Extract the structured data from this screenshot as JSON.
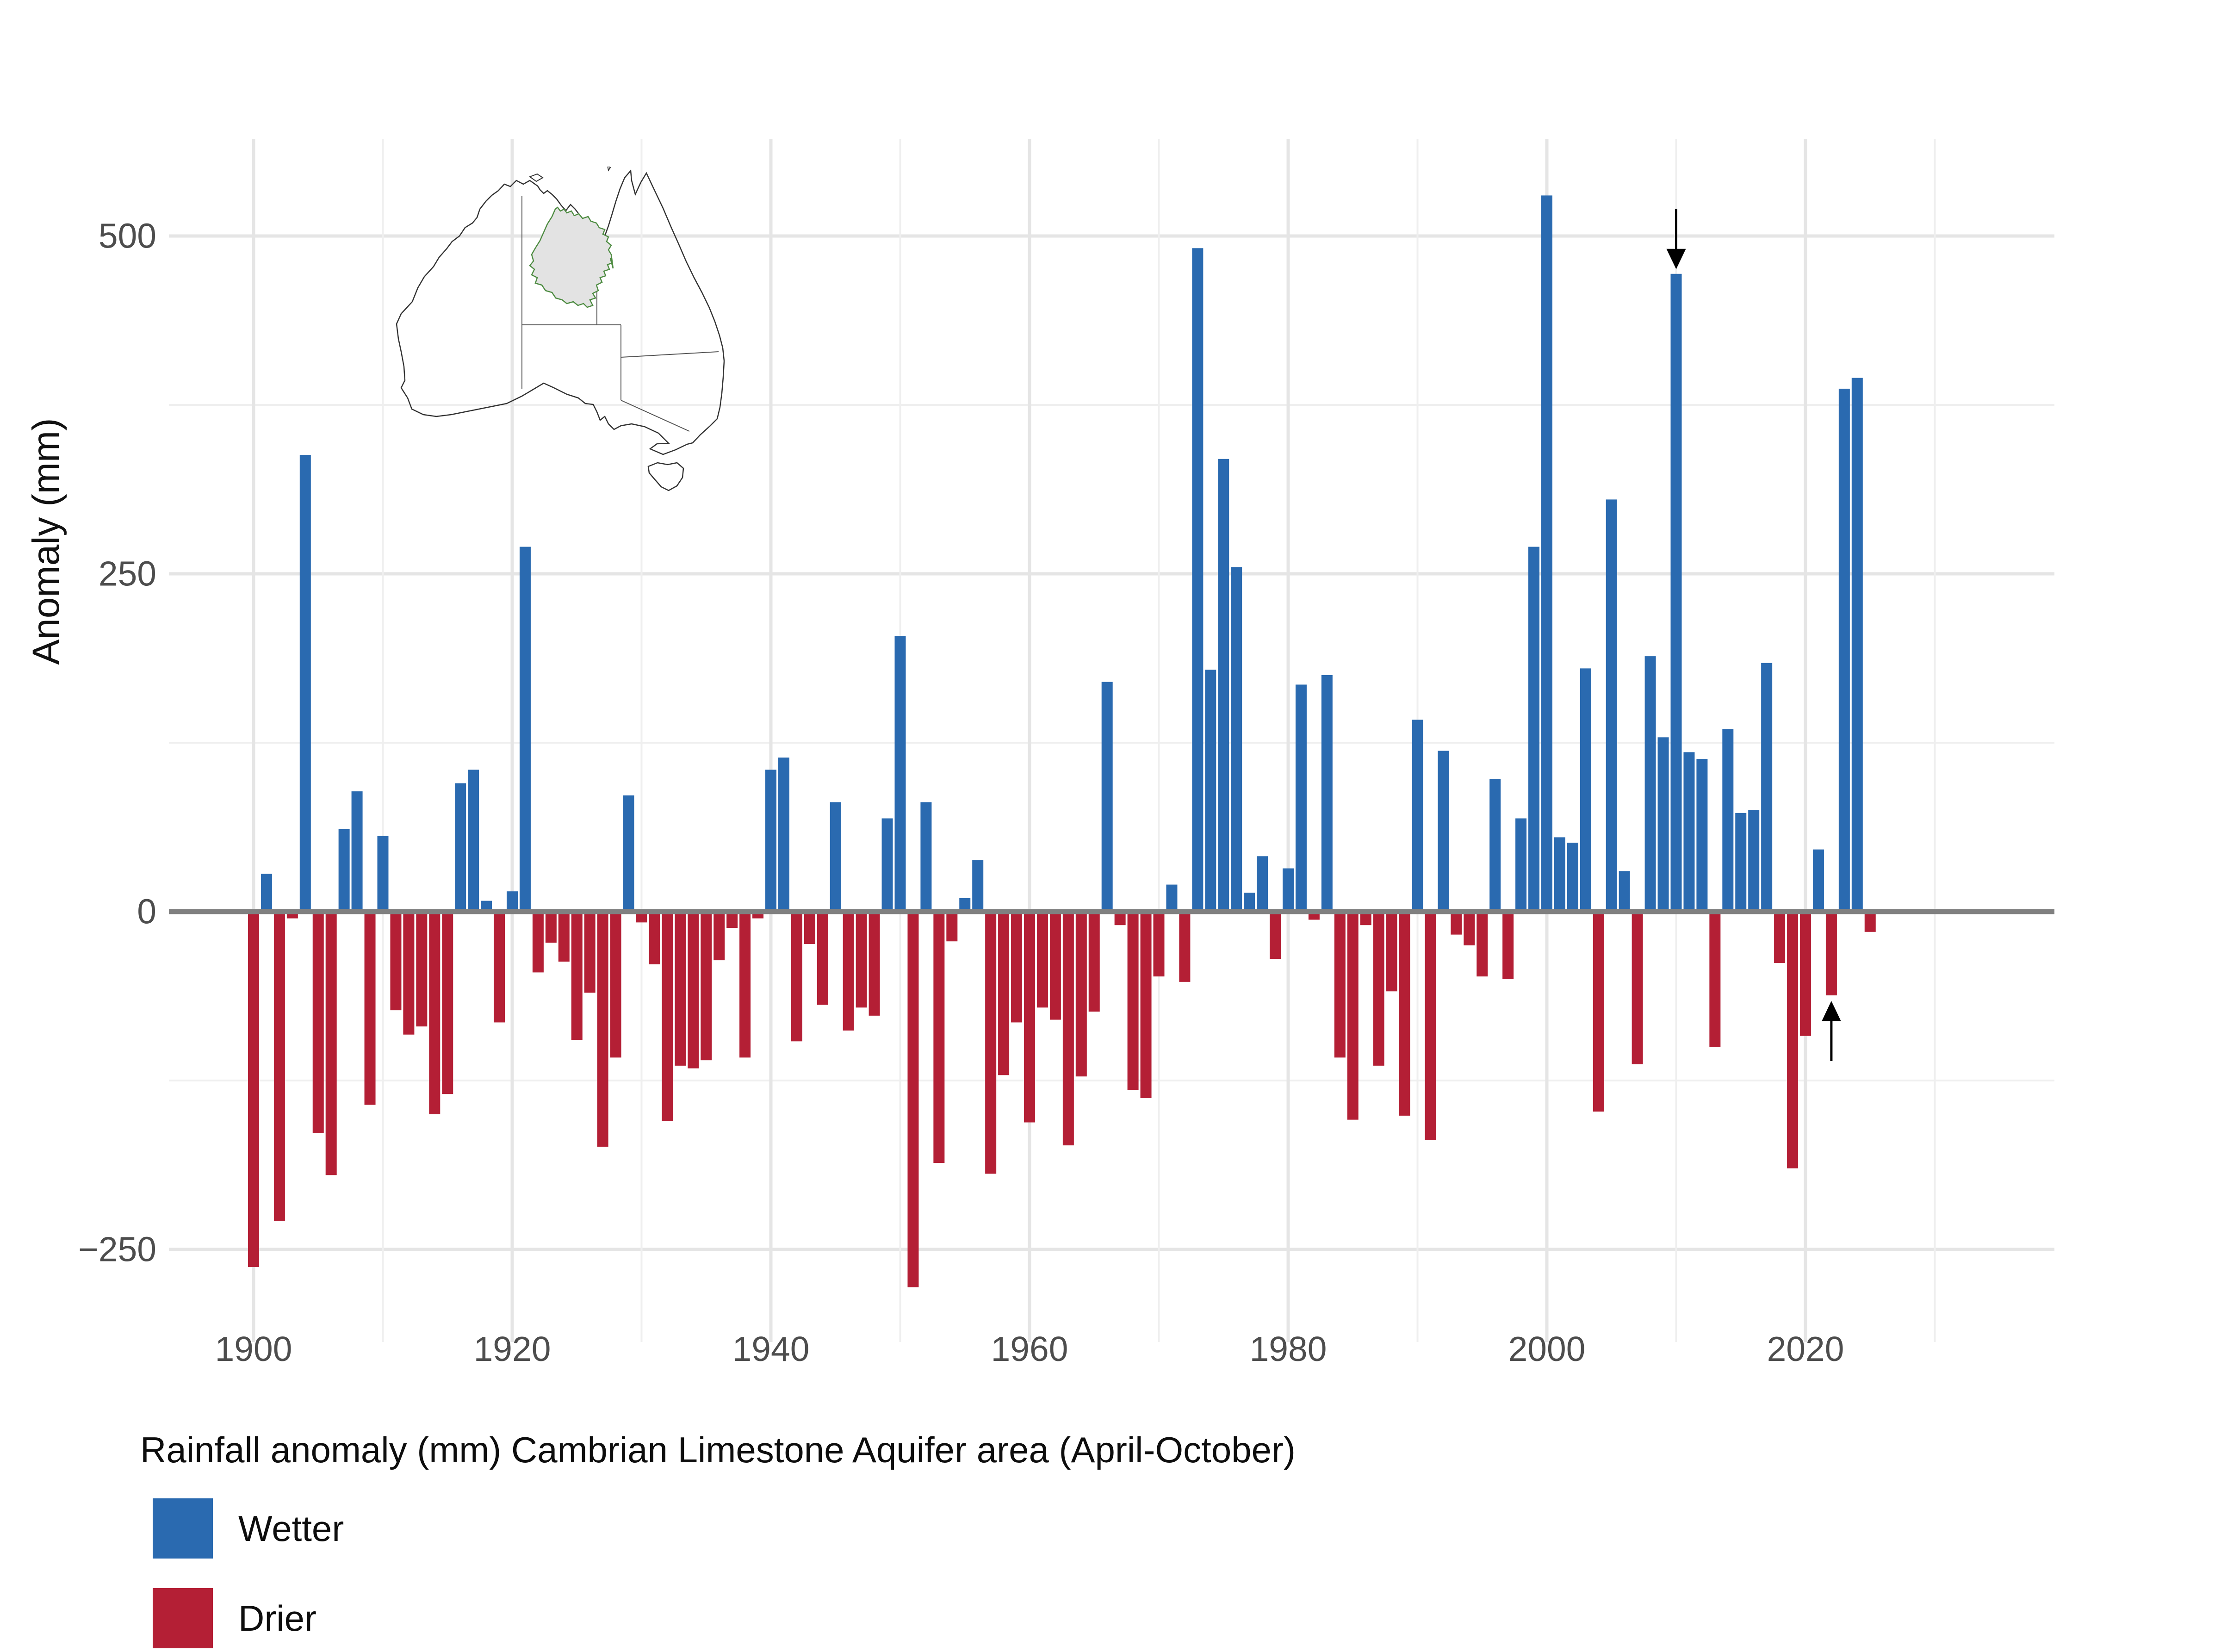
{
  "y_axis": {
    "title": "Anomaly (mm)",
    "ticks": [
      {
        "value": 500,
        "label": "500"
      },
      {
        "value": 250,
        "label": "250"
      },
      {
        "value": 0,
        "label": "0"
      },
      {
        "value": -250,
        "label": "−250"
      }
    ],
    "minor_gridlines": [
      375,
      125,
      -125
    ]
  },
  "x_axis": {
    "ticks": [
      {
        "value": 1900,
        "label": "1900"
      },
      {
        "value": 1920,
        "label": "1920"
      },
      {
        "value": 1940,
        "label": "1940"
      },
      {
        "value": 1960,
        "label": "1960"
      },
      {
        "value": 1980,
        "label": "1980"
      },
      {
        "value": 2000,
        "label": "2000"
      },
      {
        "value": 2020,
        "label": "2020"
      }
    ],
    "gridline_step_years": 10
  },
  "legend": {
    "title": "Rainfall anomaly (mm) Cambrian Limestone Aquifer area (April-October)",
    "items": [
      {
        "label": "Wetter",
        "color": "#2a6ab0"
      },
      {
        "label": "Drier",
        "color": "#b41f35"
      }
    ]
  },
  "chart_data": {
    "type": "bar",
    "title": "Rainfall anomaly (mm) Cambrian Limestone Aquifer area (April-October)",
    "xlabel": "",
    "ylabel": "Anomaly (mm)",
    "ylim": [
      -318,
      570
    ],
    "xlim": [
      1897,
      2031
    ],
    "grid": "major and minor gridlines, light grey; dark grey zero line",
    "legend_position": "bottom-left",
    "x": [
      1900,
      1901,
      1902,
      1903,
      1904,
      1905,
      1906,
      1907,
      1908,
      1909,
      1910,
      1911,
      1912,
      1913,
      1914,
      1915,
      1916,
      1917,
      1918,
      1919,
      1920,
      1921,
      1922,
      1923,
      1924,
      1925,
      1926,
      1927,
      1928,
      1929,
      1930,
      1931,
      1932,
      1933,
      1934,
      1935,
      1936,
      1937,
      1938,
      1939,
      1940,
      1941,
      1942,
      1943,
      1944,
      1945,
      1946,
      1947,
      1948,
      1949,
      1950,
      1951,
      1952,
      1953,
      1954,
      1955,
      1956,
      1957,
      1958,
      1959,
      1960,
      1961,
      1962,
      1963,
      1964,
      1965,
      1966,
      1967,
      1968,
      1969,
      1970,
      1971,
      1972,
      1973,
      1974,
      1975,
      1976,
      1977,
      1978,
      1979,
      1980,
      1981,
      1982,
      1983,
      1984,
      1985,
      1986,
      1987,
      1988,
      1989,
      1990,
      1991,
      1992,
      1993,
      1994,
      1995,
      1996,
      1997,
      1998,
      1999,
      2000,
      2001,
      2002,
      2003,
      2004,
      2005,
      2006,
      2007,
      2008,
      2009,
      2010,
      2011,
      2012,
      2013,
      2014,
      2015,
      2016,
      2017,
      2018,
      2019,
      2020,
      2021,
      2022,
      2023,
      2024,
      2025
    ],
    "values": [
      -263,
      28,
      -229,
      -5,
      338,
      -164,
      -195,
      61,
      89,
      -143,
      56,
      -73,
      -91,
      -85,
      -150,
      -135,
      95,
      105,
      8,
      -82,
      15,
      270,
      -45,
      -23,
      -37,
      -95,
      -60,
      -174,
      -108,
      86,
      -8,
      -39,
      -155,
      -114,
      -116,
      -110,
      -36,
      -12,
      -108,
      -5,
      105,
      114,
      -96,
      -24,
      -69,
      81,
      -88,
      -71,
      -77,
      69,
      204,
      -278,
      81,
      -186,
      -22,
      10,
      38,
      -194,
      -121,
      -82,
      -156,
      -71,
      -80,
      -173,
      -122,
      -74,
      170,
      -10,
      -132,
      -138,
      -48,
      20,
      -52,
      491,
      179,
      335,
      255,
      14,
      41,
      -35,
      32,
      168,
      -6,
      175,
      -108,
      -154,
      -10,
      -114,
      -59,
      -151,
      142,
      -169,
      119,
      -17,
      -25,
      -48,
      98,
      -50,
      69,
      270,
      530,
      55,
      51,
      180,
      -148,
      305,
      30,
      -113,
      189,
      129,
      472,
      118,
      113,
      -100,
      135,
      73,
      75,
      184,
      -38,
      -190,
      -92,
      46,
      -62,
      387,
      395,
      -15
    ],
    "series_rule": "positive = Wetter (blue), negative = Drier (red)",
    "annotations": [
      {
        "year": 2010,
        "direction": "down",
        "meaning": "down-arrow above 2010 bar"
      },
      {
        "year": 2022,
        "direction": "up",
        "meaning": "up-arrow below 2022 bar"
      }
    ],
    "colors": {
      "positive": "#2a6ab0",
      "negative": "#b41f35",
      "zero_line": "#808080",
      "major_gridline": "#e5e5e5",
      "minor_gridline": "#efefef",
      "tick_text": "#4d4d4d",
      "text": "#0d0d0d",
      "annotation": "#000000"
    },
    "map_inset": {
      "description": "Outline map of Australia with state borders; Cambrian Limestone Aquifer area in the Northern Territory highlighted",
      "region_fill": "#e3e3e3",
      "region_stroke": "#4e8c42",
      "outline_stroke": "#333333"
    }
  }
}
